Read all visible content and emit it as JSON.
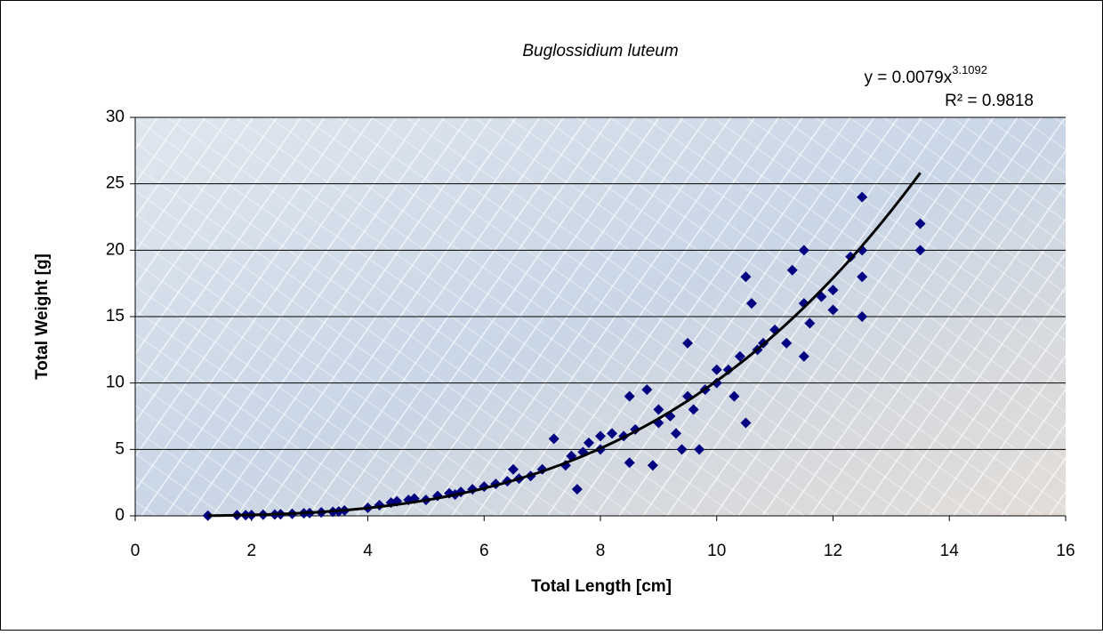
{
  "chart_data": {
    "type": "scatter",
    "title": "Buglossidium luteum",
    "x_label": "Total Length [cm]",
    "y_label": "Total Weight [g]",
    "color": "#000080",
    "x": [
      1.25,
      1.75,
      1.9,
      2.0,
      2.2,
      2.4,
      2.5,
      2.7,
      2.9,
      3.0,
      3.2,
      3.4,
      3.5,
      3.6,
      4.0,
      4.2,
      4.4,
      4.5,
      4.7,
      4.8,
      5.0,
      5.2,
      5.4,
      5.5,
      5.6,
      5.8,
      6.0,
      6.2,
      6.4,
      6.5,
      6.6,
      6.8,
      7.0,
      7.2,
      7.4,
      7.5,
      7.6,
      7.7,
      7.8,
      8.0,
      8.0,
      8.2,
      8.4,
      8.5,
      8.5,
      8.6,
      8.8,
      8.9,
      9.0,
      9.0,
      9.2,
      9.3,
      9.4,
      9.5,
      9.5,
      9.6,
      9.7,
      9.8,
      10.0,
      10.0,
      10.2,
      10.3,
      10.4,
      10.5,
      10.5,
      10.6,
      10.7,
      10.8,
      11.0,
      11.2,
      11.3,
      11.5,
      11.5,
      11.5,
      11.6,
      11.8,
      12.0,
      12.0,
      12.3,
      12.5,
      12.5,
      12.5,
      12.5,
      13.5,
      13.5
    ],
    "values": [
      0.02,
      0.05,
      0.05,
      0.06,
      0.08,
      0.1,
      0.12,
      0.15,
      0.19,
      0.21,
      0.26,
      0.3,
      0.33,
      0.4,
      0.6,
      0.8,
      1.0,
      1.1,
      1.2,
      1.3,
      1.2,
      1.5,
      1.7,
      1.6,
      1.8,
      2.0,
      2.2,
      2.4,
      2.6,
      3.5,
      2.8,
      3.0,
      3.5,
      5.8,
      3.8,
      4.5,
      2.0,
      4.8,
      5.5,
      5.0,
      6.0,
      6.2,
      6.0,
      4.0,
      9.0,
      6.5,
      9.5,
      3.8,
      7.0,
      8.0,
      7.5,
      6.2,
      5.0,
      13.0,
      9.0,
      8.0,
      5.0,
      9.5,
      10.0,
      11.0,
      11.0,
      9.0,
      12.0,
      18.0,
      7.0,
      16.0,
      12.5,
      13.0,
      14.0,
      13.0,
      18.5,
      20.0,
      12.0,
      16.0,
      14.5,
      16.5,
      15.5,
      17.0,
      19.5,
      24.0,
      20.0,
      15.0,
      18.0,
      22.0,
      20.0
    ],
    "trendline": {
      "equation_label": "y = 0.0079x",
      "exponent_label": "3.1092",
      "r2_label": "R² = 0.9818",
      "a": 0.0079,
      "b": 3.1092,
      "color": "#000000"
    },
    "xlim": [
      0,
      16
    ],
    "xticks": [
      0,
      2,
      4,
      6,
      8,
      10,
      12,
      14,
      16
    ],
    "ylim": [
      0,
      30
    ],
    "yticks": [
      0,
      5,
      10,
      15,
      20,
      25,
      30
    ],
    "grid": true
  }
}
